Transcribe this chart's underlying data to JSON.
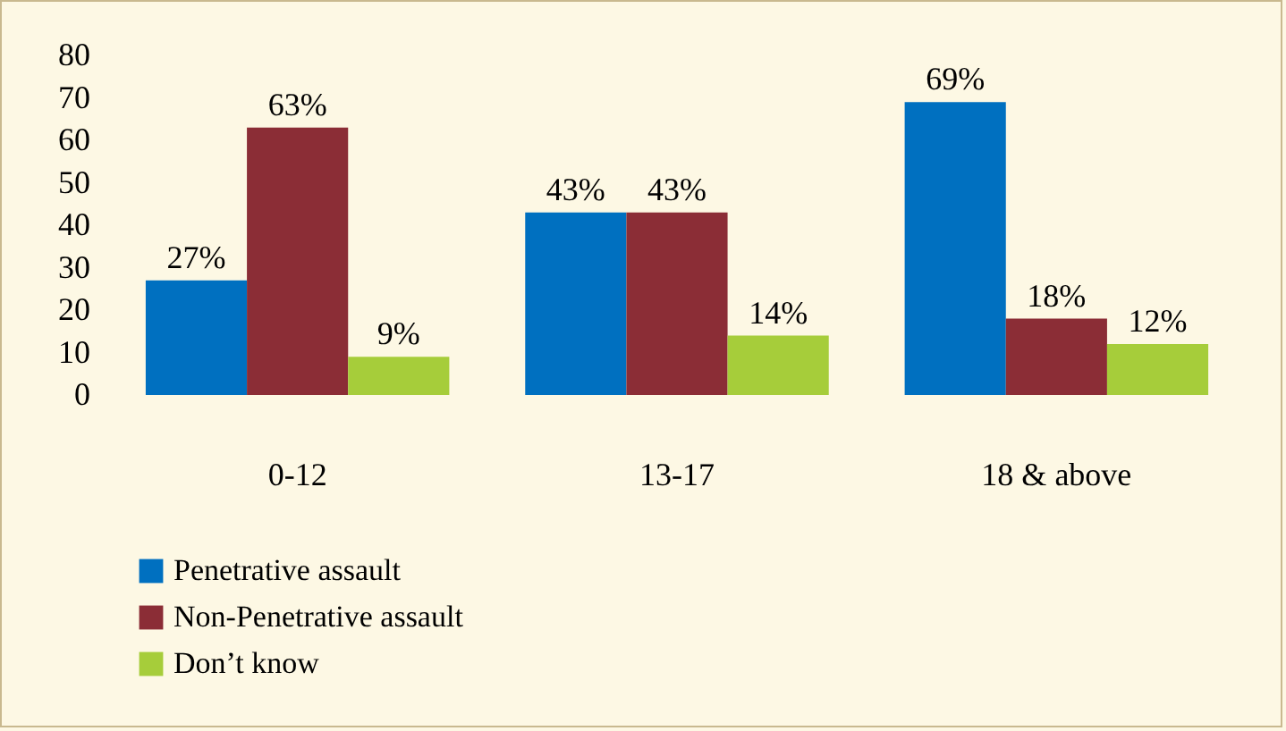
{
  "chart_data": {
    "type": "bar",
    "categories": [
      "0-12",
      "13-17",
      "18 & above"
    ],
    "series": [
      {
        "name": "Penetrative assault",
        "color": "#0070c0",
        "values": [
          27,
          43,
          69
        ],
        "value_labels": [
          "27%",
          "43%",
          "69%"
        ]
      },
      {
        "name": "Non-Penetrative assault",
        "color": "#8b2d36",
        "values": [
          63,
          43,
          18
        ],
        "value_labels": [
          "63%",
          "43%",
          "18%"
        ]
      },
      {
        "name": "Don’t know",
        "color": "#a6cd3a",
        "values": [
          9,
          14,
          12
        ],
        "value_labels": [
          "9%",
          "14%",
          "12%"
        ]
      }
    ],
    "ylim": [
      0,
      80
    ],
    "yticks": [
      0,
      10,
      20,
      30,
      40,
      50,
      60,
      70,
      80
    ],
    "grid": false,
    "legend": "bottom left"
  }
}
